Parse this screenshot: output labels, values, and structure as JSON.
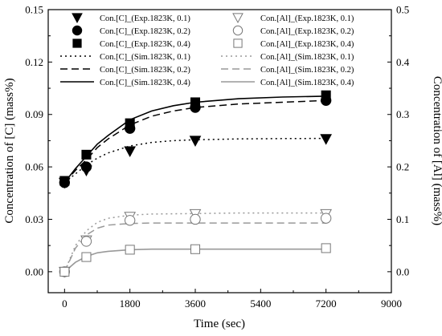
{
  "chart_data": {
    "type": "scatter",
    "xlabel": "Time (sec)",
    "ylabel_left": "Concentration of [C] (mass%)",
    "ylabel_right": "Concentration of [Al] (mass%)",
    "xlim": [
      -450,
      9000
    ],
    "x_ticks": [
      0,
      1800,
      3600,
      5400,
      7200,
      9000
    ],
    "x_tick_labels": [
      "0",
      "1800",
      "3600",
      "5400",
      "7200",
      "9000"
    ],
    "ylim_left": [
      -0.012,
      0.15
    ],
    "y_ticks_left": [
      0.0,
      0.03,
      0.06,
      0.09,
      0.12,
      0.15
    ],
    "y_tick_labels_left": [
      "0.00",
      "0.03",
      "0.06",
      "0.09",
      "0.12",
      "0.15"
    ],
    "ylim_right": [
      -0.04,
      0.5
    ],
    "y_ticks_right": [
      0.0,
      0.1,
      0.2,
      0.3,
      0.4,
      0.5
    ],
    "y_tick_labels_right": [
      "0.0",
      "0.1",
      "0.2",
      "0.3",
      "0.4",
      "0.5"
    ],
    "grid": false,
    "legend_position": "top",
    "series": [
      {
        "name": "Con.[C]_(Exp.1823K, 0.1)",
        "axis": "left",
        "kind": "marker",
        "marker": "triangle-down",
        "color": "#000000",
        "x": [
          0,
          600,
          1800,
          3600,
          7200
        ],
        "y": [
          0.051,
          0.058,
          0.069,
          0.075,
          0.076
        ]
      },
      {
        "name": "Con.[C]_(Exp.1823K, 0.2)",
        "axis": "left",
        "kind": "marker",
        "marker": "circle-filled",
        "color": "#000000",
        "x": [
          0,
          600,
          1800,
          3600,
          7200
        ],
        "y": [
          0.051,
          0.06,
          0.082,
          0.094,
          0.098
        ]
      },
      {
        "name": "Con.[C]_(Exp.1823K, 0.4)",
        "axis": "left",
        "kind": "marker",
        "marker": "square-filled",
        "color": "#000000",
        "x": [
          0,
          600,
          1800,
          3600,
          7200
        ],
        "y": [
          0.052,
          0.067,
          0.085,
          0.097,
          0.101
        ]
      },
      {
        "name": "Con.[Al]_(Exp.1823K, 0.1)",
        "axis": "right",
        "kind": "marker",
        "marker": "triangle-down-open",
        "color": "#000000",
        "x": [
          0,
          600,
          1800,
          3600,
          7200
        ],
        "y": [
          0.0,
          0.06,
          0.105,
          0.11,
          0.11
        ]
      },
      {
        "name": "Con.[Al]_(Exp.1823K, 0.2)",
        "axis": "right",
        "kind": "marker",
        "marker": "circle-open",
        "color": "#000000",
        "x": [
          0,
          600,
          1800,
          3600,
          7200
        ],
        "y": [
          0.0,
          0.058,
          0.098,
          0.1,
          0.102
        ]
      },
      {
        "name": "Con.[Al]_(Exp.1823K, 0.4)",
        "axis": "right",
        "kind": "marker",
        "marker": "square-open",
        "color": "#000000",
        "x": [
          0,
          600,
          1800,
          3600,
          7200
        ],
        "y": [
          0.0,
          0.028,
          0.042,
          0.043,
          0.045
        ]
      },
      {
        "name": "Con.[C]_(Sim.1823K, 0.1)",
        "axis": "left",
        "kind": "line",
        "dash": "dotted",
        "color": "#000000",
        "x": [
          0,
          300,
          600,
          900,
          1200,
          1800,
          2400,
          3000,
          3600,
          4800,
          6000,
          7200
        ],
        "y": [
          0.051,
          0.056,
          0.061,
          0.065,
          0.068,
          0.072,
          0.074,
          0.075,
          0.0755,
          0.076,
          0.0762,
          0.0763
        ]
      },
      {
        "name": "Con.[C]_(Sim.1823K, 0.2)",
        "axis": "left",
        "kind": "line",
        "dash": "dashed",
        "color": "#000000",
        "x": [
          0,
          300,
          600,
          900,
          1200,
          1800,
          2400,
          3000,
          3600,
          4800,
          6000,
          7200
        ],
        "y": [
          0.051,
          0.058,
          0.064,
          0.071,
          0.076,
          0.084,
          0.089,
          0.092,
          0.094,
          0.096,
          0.097,
          0.098
        ]
      },
      {
        "name": "Con.[C]_(Sim.1823K, 0.4)",
        "axis": "left",
        "kind": "line",
        "dash": "solid",
        "color": "#000000",
        "x": [
          0,
          300,
          600,
          900,
          1200,
          1800,
          2400,
          3000,
          3600,
          4800,
          6000,
          7200
        ],
        "y": [
          0.051,
          0.059,
          0.066,
          0.073,
          0.078,
          0.087,
          0.092,
          0.095,
          0.097,
          0.099,
          0.1,
          0.1005
        ]
      },
      {
        "name": "Con.[Al]_(Sim.1823K, 0.1)",
        "axis": "right",
        "kind": "line",
        "dash": "dotted",
        "color": "#999999",
        "x": [
          0,
          300,
          600,
          900,
          1200,
          1800,
          2400,
          3600,
          4800,
          6000,
          7200
        ],
        "y": [
          0.0,
          0.05,
          0.078,
          0.094,
          0.102,
          0.108,
          0.11,
          0.111,
          0.112,
          0.112,
          0.112
        ]
      },
      {
        "name": "Con.[Al]_(Sim.1823K, 0.2)",
        "axis": "right",
        "kind": "line",
        "dash": "dashed",
        "color": "#999999",
        "x": [
          0,
          300,
          600,
          900,
          1200,
          1800,
          2400,
          3600,
          4800,
          6000,
          7200
        ],
        "y": [
          0.0,
          0.045,
          0.07,
          0.083,
          0.089,
          0.092,
          0.093,
          0.093,
          0.093,
          0.093,
          0.093
        ]
      },
      {
        "name": "Con.[Al]_(Sim.1823K, 0.4)",
        "axis": "right",
        "kind": "line",
        "dash": "solid",
        "color": "#999999",
        "x": [
          0,
          300,
          600,
          900,
          1200,
          1800,
          2400,
          3600,
          4800,
          6000,
          7200
        ],
        "y": [
          0.0,
          0.018,
          0.029,
          0.036,
          0.039,
          0.042,
          0.043,
          0.043,
          0.043,
          0.043,
          0.043
        ]
      }
    ],
    "legend_columns": [
      [
        "Con.[C]_(Exp.1823K, 0.1)",
        "Con.[C]_(Exp.1823K, 0.2)",
        "Con.[C]_(Exp.1823K, 0.4)",
        "Con.[C]_(Sim.1823K, 0.1)",
        "Con.[C]_(Sim.1823K, 0.2)",
        "Con.[C]_(Sim.1823K, 0.4)"
      ],
      [
        "Con.[Al]_(Exp.1823K, 0.1)",
        "Con.[Al]_(Exp.1823K, 0.2)",
        "Con.[Al]_(Exp.1823K, 0.4)",
        "Con.[Al]_(Sim.1823K, 0.1)",
        "Con.[Al]_(Sim.1823K, 0.2)",
        "Con.[Al]_(Sim.1823K, 0.4)"
      ]
    ]
  }
}
